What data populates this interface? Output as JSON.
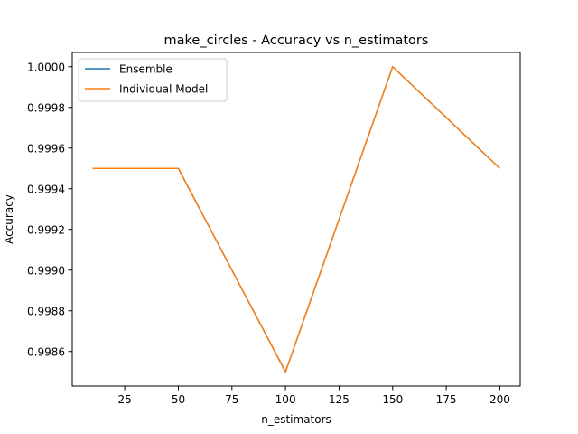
{
  "chart_data": {
    "type": "line",
    "title": "make_circles - Accuracy vs n_estimators",
    "xlabel": "n_estimators",
    "ylabel": "Accuracy",
    "x": [
      10,
      50,
      100,
      150,
      200
    ],
    "series": [
      {
        "name": "Ensemble",
        "values": [
          0.9995,
          0.9995,
          0.9985,
          1.0,
          0.9995
        ],
        "color": "#1f77b4"
      },
      {
        "name": "Individual Model",
        "values": [
          0.9995,
          0.9995,
          0.9985,
          1.0,
          0.9995
        ],
        "color": "#ff7f0e"
      }
    ],
    "xlim": [
      0.5,
      209.5
    ],
    "ylim": [
      0.99843,
      1.00007
    ],
    "xticks": [
      25,
      50,
      75,
      100,
      125,
      150,
      175,
      200
    ],
    "xtick_labels": [
      "25",
      "50",
      "75",
      "100",
      "125",
      "150",
      "175",
      "200"
    ],
    "yticks": [
      0.9986,
      0.9988,
      0.999,
      0.9992,
      0.9994,
      0.9996,
      0.9998,
      1.0
    ],
    "ytick_labels": [
      "0.9986",
      "0.9988",
      "0.9990",
      "0.9992",
      "0.9994",
      "0.9996",
      "0.9998",
      "1.0000"
    ],
    "grid": false,
    "legend": "top-left"
  }
}
